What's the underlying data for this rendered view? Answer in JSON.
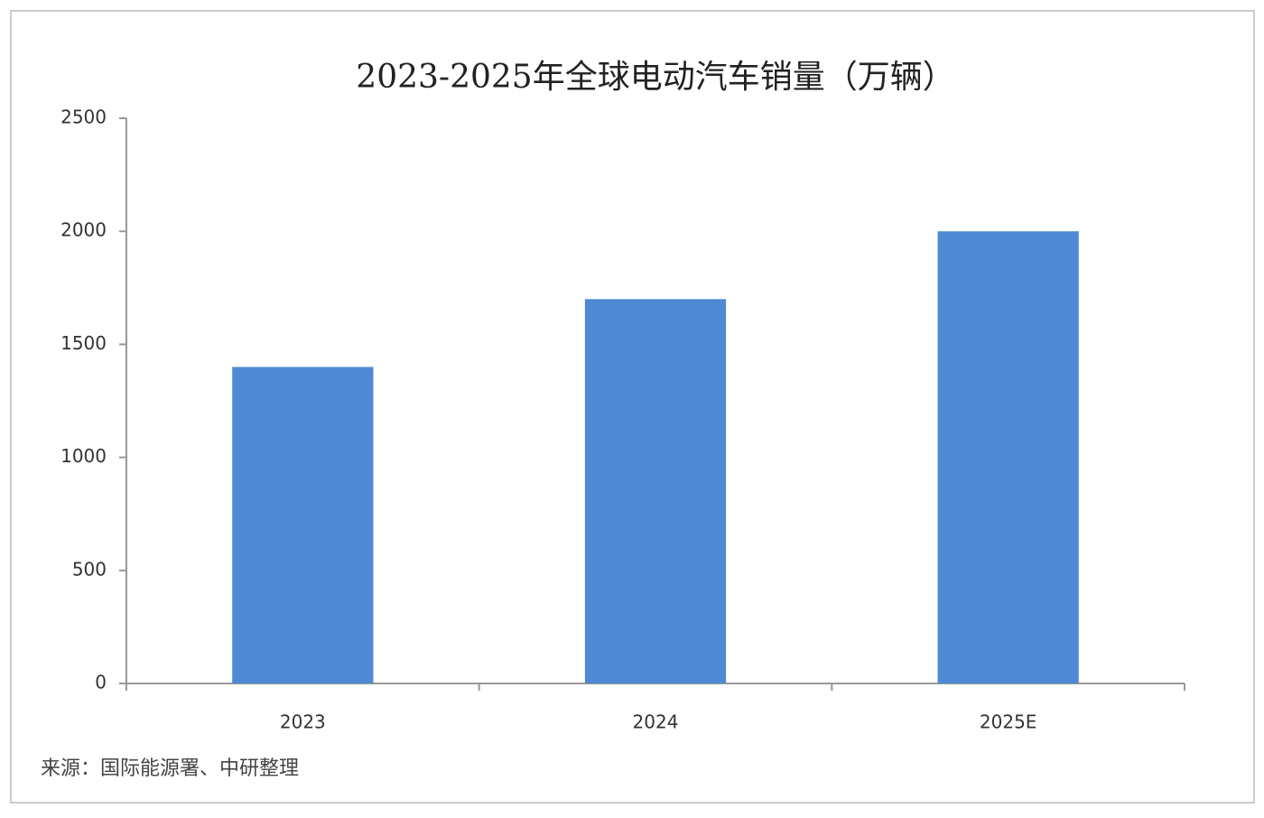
{
  "chart_data": {
    "type": "bar",
    "title": "2023-2025年全球电动汽车销量（万辆）",
    "categories": [
      "2023",
      "2024",
      "2025E"
    ],
    "values": [
      1400,
      1700,
      2000
    ],
    "color": "#4f89d3",
    "ylim": [
      0,
      2500
    ],
    "yticks": [
      0,
      500,
      1000,
      1500,
      2000,
      2500
    ],
    "grid": false,
    "source": "来源：国际能源署、中研整理"
  }
}
